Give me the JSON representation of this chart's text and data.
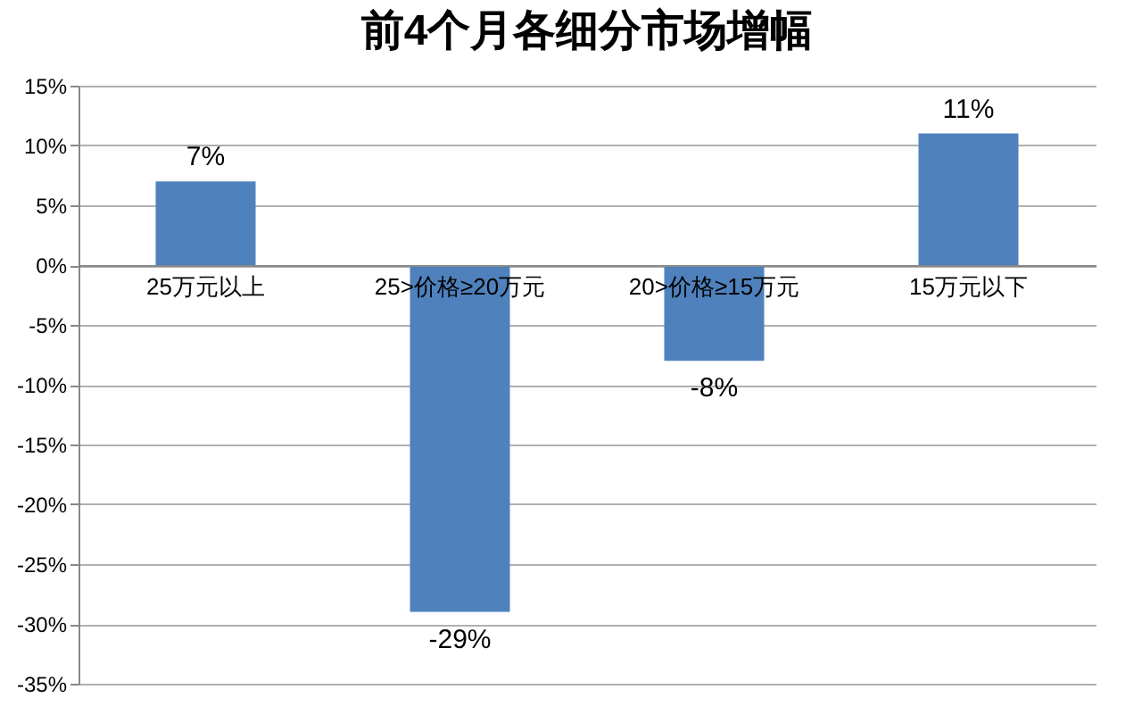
{
  "chart_data": {
    "type": "bar",
    "title": "前4个月各细分市场增幅",
    "categories": [
      "25万元以上",
      "25>价格≥20万元",
      "20>价格≥15万元",
      "15万元以下"
    ],
    "series": [
      {
        "color": "#4f81bd",
        "values": [
          7,
          -29,
          -8,
          11
        ]
      }
    ],
    "value_labels": [
      "7%",
      "-29%",
      "-8%",
      "11%"
    ],
    "ylim": [
      -35,
      15
    ],
    "yticks": [
      {
        "value": -35,
        "label": "-35%"
      },
      {
        "value": -30,
        "label": "-30%"
      },
      {
        "value": -25,
        "label": "-25%"
      },
      {
        "value": -20,
        "label": "-20%"
      },
      {
        "value": -15,
        "label": "-15%"
      },
      {
        "value": -10,
        "label": "-10%"
      },
      {
        "value": -5,
        "label": "-5%"
      },
      {
        "value": 0,
        "label": "0%"
      },
      {
        "value": 5,
        "label": "5%"
      },
      {
        "value": 10,
        "label": "10%"
      },
      {
        "value": 15,
        "label": "15%"
      }
    ],
    "grid": "y"
  }
}
